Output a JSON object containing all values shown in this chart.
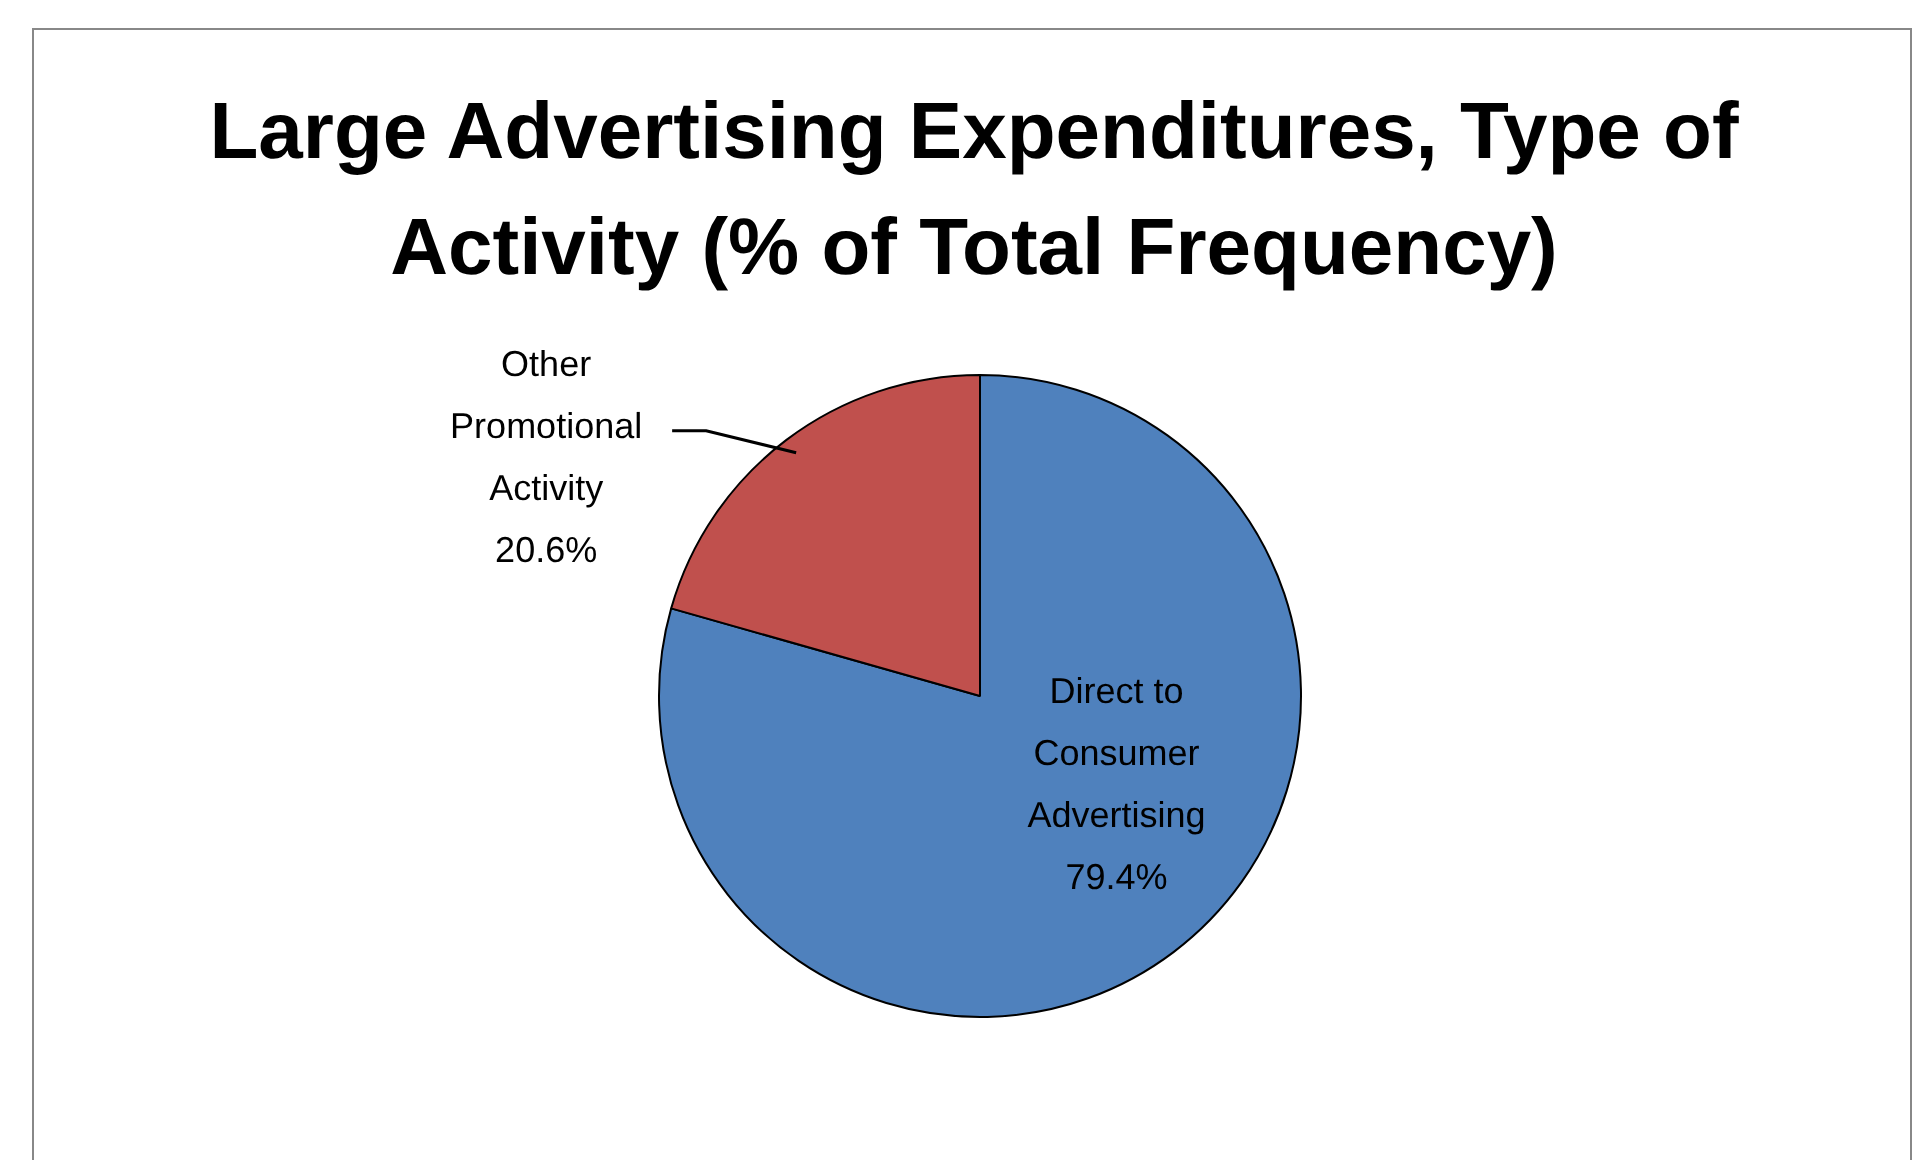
{
  "chart_data": {
    "type": "pie",
    "title": "Large Advertising Expenditures, Type of Activity (% of Total Frequency)",
    "categories": [
      "Direct to Consumer Advertising",
      "Other Promotional Activity"
    ],
    "values": [
      79.4,
      20.6
    ],
    "value_labels": [
      "79.4%",
      "20.6%"
    ],
    "colors": [
      "#4f81bd",
      "#c0504d"
    ],
    "legend": false
  }
}
